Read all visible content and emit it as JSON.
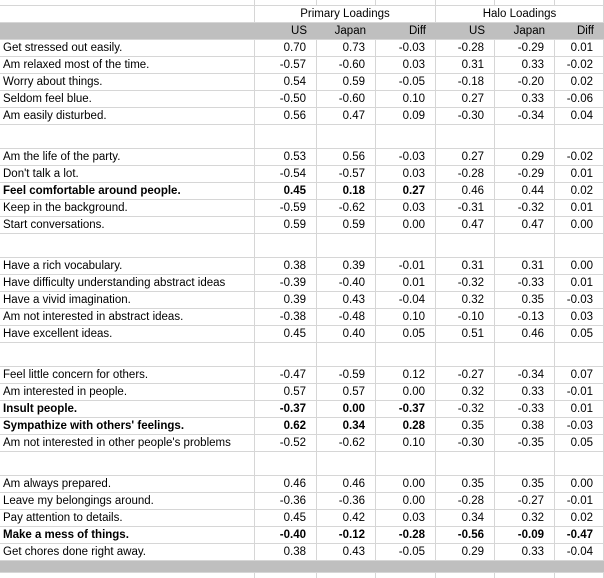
{
  "table": {
    "column_groups": [
      {
        "label": "Primary Loadings"
      },
      {
        "label": "Halo Loadings"
      }
    ],
    "sub_headers": [
      "US",
      "Japan",
      "Diff",
      "US",
      "Japan",
      "Diff"
    ],
    "colors": {
      "header_fill": "#bfbfbf",
      "footer_fill": "#bfbfbf",
      "gridline": "#d6d6d6",
      "text": "#000000"
    },
    "groups": [
      {
        "rows": [
          {
            "label": "Get stressed out easily.",
            "bold": "none",
            "values": [
              "0.70",
              "0.73",
              "-0.03",
              "-0.28",
              "-0.29",
              "0.01"
            ]
          },
          {
            "label": "Am relaxed most of the time.",
            "bold": "none",
            "values": [
              "-0.57",
              "-0.60",
              "0.03",
              "0.31",
              "0.33",
              "-0.02"
            ]
          },
          {
            "label": "Worry about things.",
            "bold": "none",
            "values": [
              "0.54",
              "0.59",
              "-0.05",
              "-0.18",
              "-0.20",
              "0.02"
            ]
          },
          {
            "label": "Seldom feel blue.",
            "bold": "none",
            "values": [
              "-0.50",
              "-0.60",
              "0.10",
              "0.27",
              "0.33",
              "-0.06"
            ]
          },
          {
            "label": "Am easily disturbed.",
            "bold": "none",
            "values": [
              "0.56",
              "0.47",
              "0.09",
              "-0.30",
              "-0.34",
              "0.04"
            ]
          }
        ]
      },
      {
        "rows": [
          {
            "label": "Am the life of the party.",
            "bold": "none",
            "values": [
              "0.53",
              "0.56",
              "-0.03",
              "0.27",
              "0.29",
              "-0.02"
            ]
          },
          {
            "label": "Don't talk a lot.",
            "bold": "none",
            "values": [
              "-0.54",
              "-0.57",
              "0.03",
              "-0.28",
              "-0.29",
              "0.01"
            ]
          },
          {
            "label": "Feel comfortable around people.",
            "bold": "primary",
            "values": [
              "0.45",
              "0.18",
              "0.27",
              "0.46",
              "0.44",
              "0.02"
            ]
          },
          {
            "label": "Keep in the background.",
            "bold": "none",
            "values": [
              "-0.59",
              "-0.62",
              "0.03",
              "-0.31",
              "-0.32",
              "0.01"
            ]
          },
          {
            "label": "Start conversations.",
            "bold": "none",
            "values": [
              "0.59",
              "0.59",
              "0.00",
              "0.47",
              "0.47",
              "0.00"
            ]
          }
        ]
      },
      {
        "rows": [
          {
            "label": "Have a rich vocabulary.",
            "bold": "none",
            "values": [
              "0.38",
              "0.39",
              "-0.01",
              "0.31",
              "0.31",
              "0.00"
            ]
          },
          {
            "label": "Have difficulty understanding abstract ideas",
            "bold": "none",
            "values": [
              "-0.39",
              "-0.40",
              "0.01",
              "-0.32",
              "-0.33",
              "0.01"
            ]
          },
          {
            "label": "Have a vivid imagination.",
            "bold": "none",
            "values": [
              "0.39",
              "0.43",
              "-0.04",
              "0.32",
              "0.35",
              "-0.03"
            ]
          },
          {
            "label": "Am not interested in abstract ideas.",
            "bold": "none",
            "values": [
              "-0.38",
              "-0.48",
              "0.10",
              "-0.10",
              "-0.13",
              "0.03"
            ]
          },
          {
            "label": "Have excellent ideas.",
            "bold": "none",
            "values": [
              "0.45",
              "0.40",
              "0.05",
              "0.51",
              "0.46",
              "0.05"
            ]
          }
        ]
      },
      {
        "rows": [
          {
            "label": "Feel little concern for others.",
            "bold": "none",
            "values": [
              "-0.47",
              "-0.59",
              "0.12",
              "-0.27",
              "-0.34",
              "0.07"
            ]
          },
          {
            "label": "Am interested in people.",
            "bold": "none",
            "values": [
              "0.57",
              "0.57",
              "0.00",
              "0.32",
              "0.33",
              "-0.01"
            ]
          },
          {
            "label": "Insult people.",
            "bold": "primary",
            "values": [
              "-0.37",
              "0.00",
              "-0.37",
              "-0.32",
              "-0.33",
              "0.01"
            ]
          },
          {
            "label": "Sympathize with others' feelings.",
            "bold": "primary",
            "values": [
              "0.62",
              "0.34",
              "0.28",
              "0.35",
              "0.38",
              "-0.03"
            ]
          },
          {
            "label": "Am not interested in other people's problems",
            "bold": "none",
            "values": [
              "-0.52",
              "-0.62",
              "0.10",
              "-0.30",
              "-0.35",
              "0.05"
            ]
          }
        ]
      },
      {
        "rows": [
          {
            "label": "Am always prepared.",
            "bold": "none",
            "values": [
              "0.46",
              "0.46",
              "0.00",
              "0.35",
              "0.35",
              "0.00"
            ]
          },
          {
            "label": "Leave my belongings around.",
            "bold": "none",
            "values": [
              "-0.36",
              "-0.36",
              "0.00",
              "-0.28",
              "-0.27",
              "-0.01"
            ]
          },
          {
            "label": "Pay attention to details.",
            "bold": "none",
            "values": [
              "0.45",
              "0.42",
              "0.03",
              "0.34",
              "0.32",
              "0.02"
            ]
          },
          {
            "label": "Make a mess of things.",
            "bold": "all",
            "values": [
              "-0.40",
              "-0.12",
              "-0.28",
              "-0.56",
              "-0.09",
              "-0.47"
            ]
          },
          {
            "label": "Get chores done right away.",
            "bold": "none",
            "values": [
              "0.38",
              "0.43",
              "-0.05",
              "0.29",
              "0.33",
              "-0.04"
            ]
          }
        ]
      }
    ]
  }
}
